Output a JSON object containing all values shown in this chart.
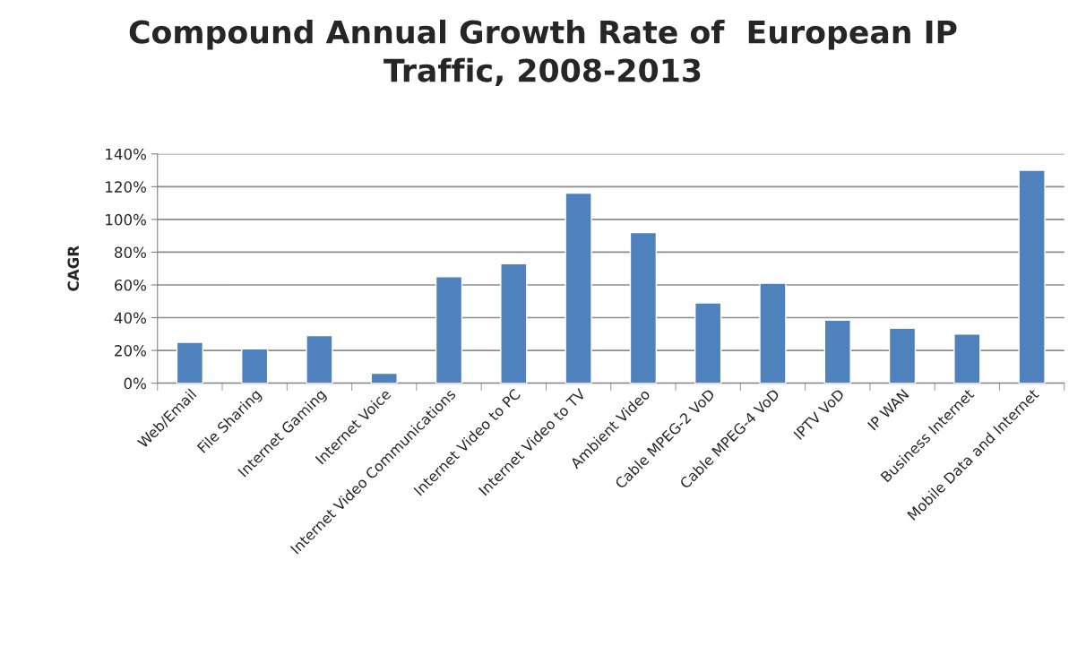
{
  "chart_data": {
    "type": "bar",
    "title": "Compound Annual Growth Rate of  European IP\nTraffic, 2008-2013",
    "ylabel": "CAGR",
    "categories": [
      "Web/Email",
      "File Sharing",
      "Internet Gaming",
      "Internet Voice",
      "Internet Video Communications",
      "Internet Video to PC",
      "Internet Video to TV",
      "Ambient Video",
      "Cable MPEG-2 VoD",
      "Cable MPEG-4 VoD",
      "IPTV VoD",
      "IP WAN",
      "Business Internet",
      "Mobile Data and Internet"
    ],
    "values": [
      25,
      21,
      29,
      6,
      65,
      73,
      116,
      92,
      49,
      61,
      38.5,
      33.5,
      30,
      130
    ],
    "color": "#4f81bd",
    "ylim": [
      0,
      140
    ],
    "yticks": [
      {
        "value": 0,
        "label": "0%"
      },
      {
        "value": 20,
        "label": "20%"
      },
      {
        "value": 40,
        "label": "40%"
      },
      {
        "value": 60,
        "label": "60%"
      },
      {
        "value": 80,
        "label": "80%"
      },
      {
        "value": 100,
        "label": "100%"
      },
      {
        "value": 120,
        "label": "120%"
      },
      {
        "value": 140,
        "label": "140%"
      }
    ],
    "grid": "y",
    "legend": false
  }
}
